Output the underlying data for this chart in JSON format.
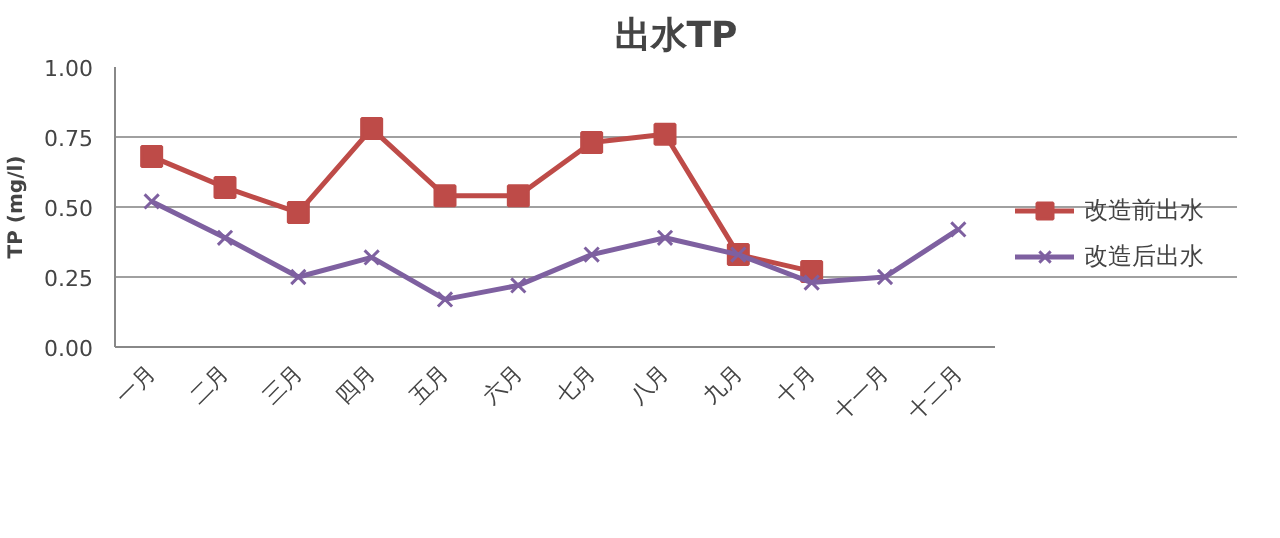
{
  "chart_data": {
    "type": "line",
    "title": "出水TP",
    "ylabel": "TP (mg/l)",
    "categories": [
      "一月",
      "二月",
      "三月",
      "四月",
      "五月",
      "六月",
      "七月",
      "八月",
      "九月",
      "十月",
      "十一月",
      "十二月"
    ],
    "series": [
      {
        "name": "改造前出水",
        "color": "#be4b48",
        "marker": "square",
        "values": [
          0.68,
          0.57,
          0.48,
          0.78,
          0.54,
          0.54,
          0.73,
          0.76,
          0.33,
          0.27,
          null,
          null
        ]
      },
      {
        "name": "改造后出水",
        "color": "#7e60a0",
        "marker": "cross",
        "values": [
          0.52,
          0.39,
          0.25,
          0.32,
          0.17,
          0.22,
          0.33,
          0.39,
          0.33,
          0.23,
          0.25,
          0.42
        ]
      }
    ],
    "ylim": [
      0,
      1
    ],
    "yticks": [
      {
        "value": 0,
        "label": "0.00"
      },
      {
        "value": 0.25,
        "label": "0.25"
      },
      {
        "value": 0.5,
        "label": "0.50"
      },
      {
        "value": 0.75,
        "label": "0.75"
      },
      {
        "value": 1,
        "label": "1.00"
      }
    ],
    "grid": "y",
    "legend": "right"
  }
}
